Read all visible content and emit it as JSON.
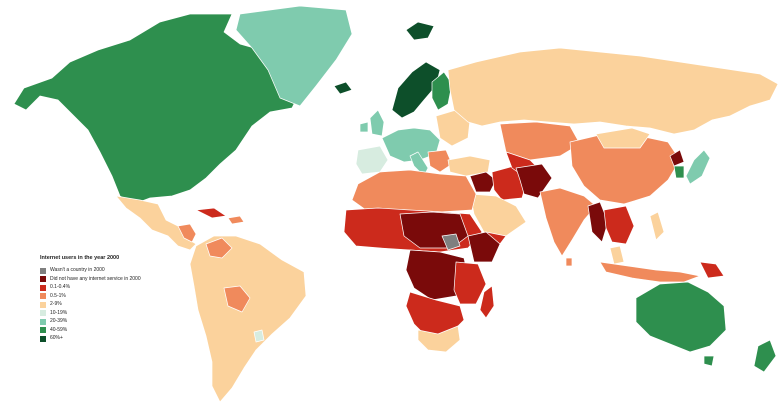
{
  "legend": {
    "title": "Internet users in the year 2000",
    "items": [
      {
        "label": "Wasn't a country in 2000",
        "color": "#7f7f7f"
      },
      {
        "label": "Did not have any internet service in 2000",
        "color": "#7a0a0a"
      },
      {
        "label": "0.1-0.4%",
        "color": "#cc2a1c"
      },
      {
        "label": "0.5-1%",
        "color": "#f08a5c"
      },
      {
        "label": "2-9%",
        "color": "#fbd29c"
      },
      {
        "label": "10-19%",
        "color": "#d7ece0"
      },
      {
        "label": "20-39%",
        "color": "#7fcbae"
      },
      {
        "label": "40-59%",
        "color": "#2e8f4e"
      },
      {
        "label": "60%+",
        "color": "#0d4f2a"
      }
    ]
  }
}
